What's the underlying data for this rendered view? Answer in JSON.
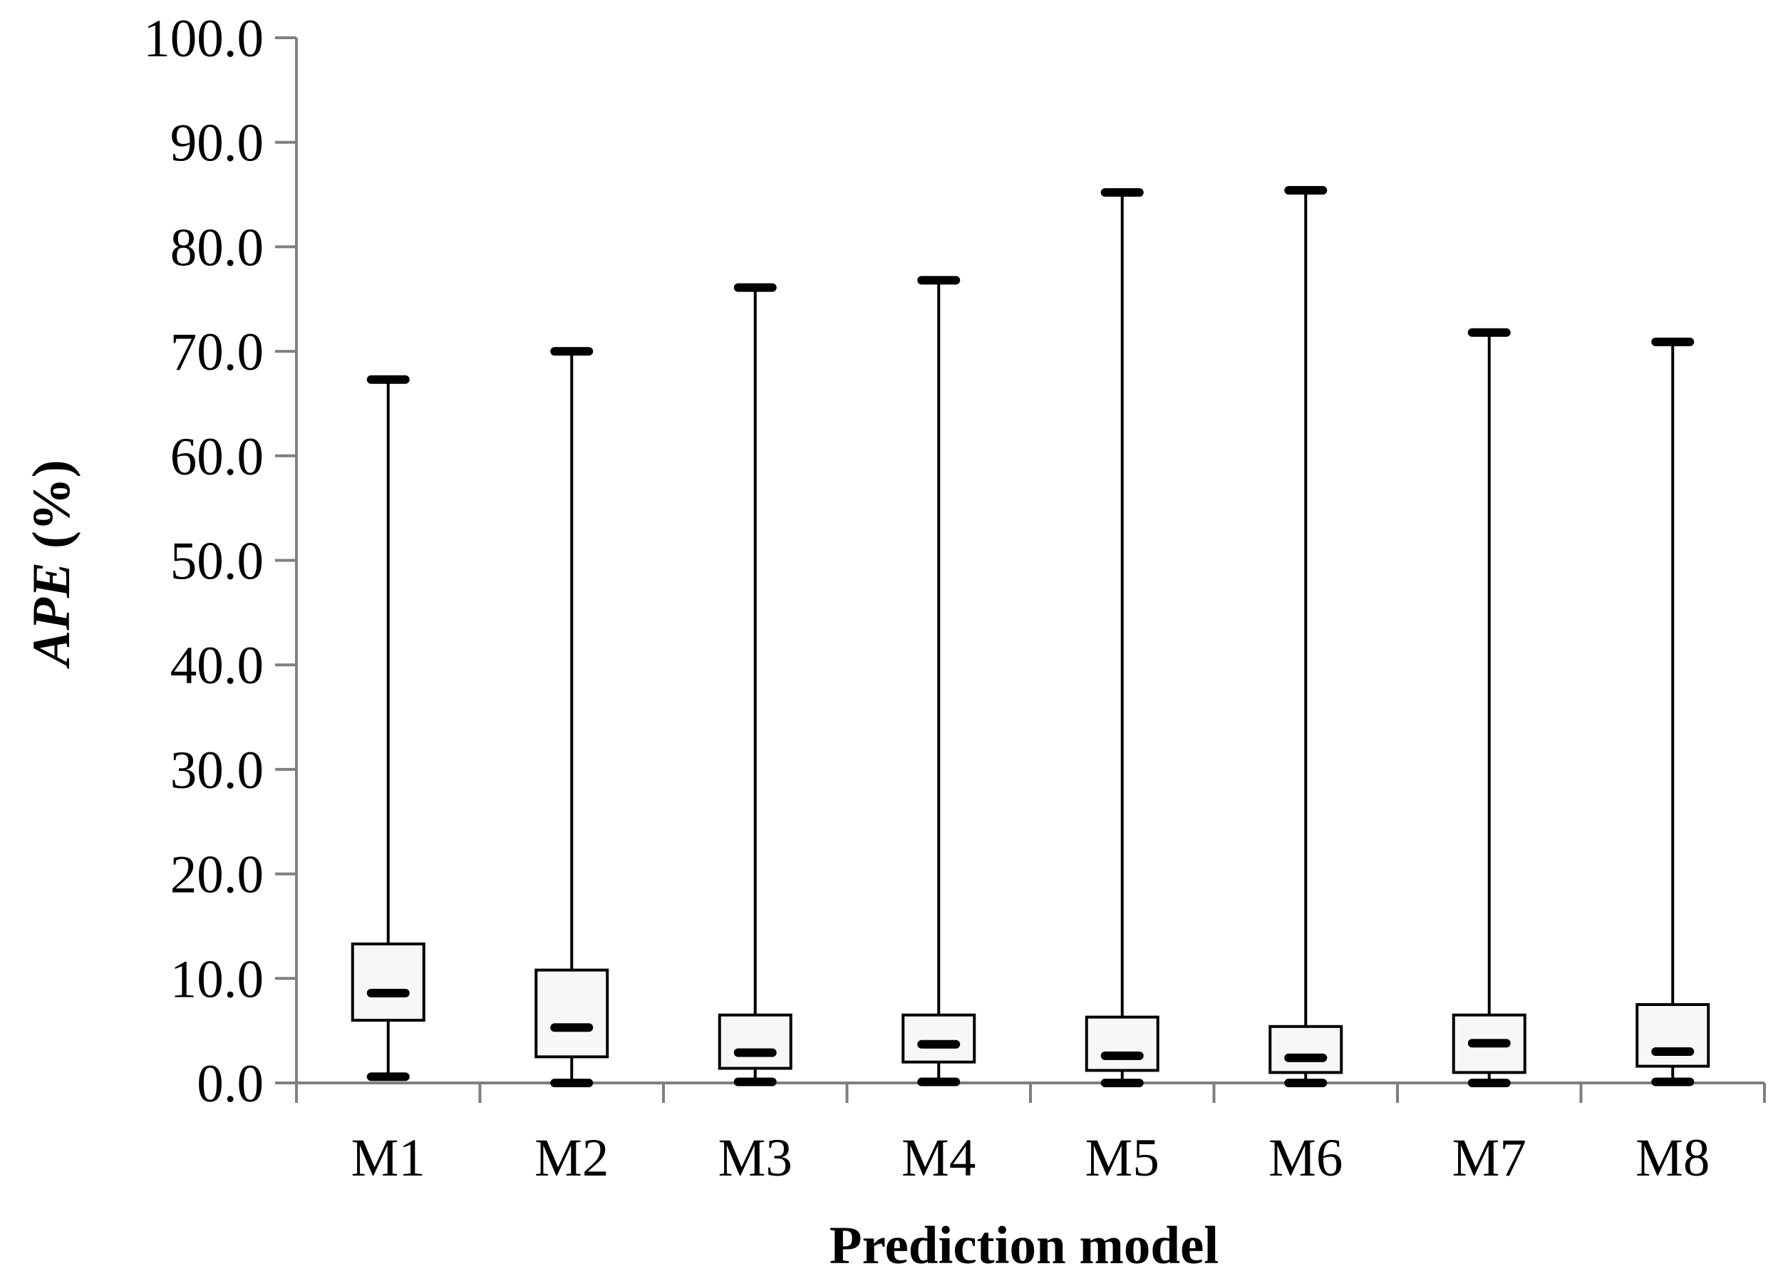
{
  "chart_data": {
    "type": "boxplot",
    "title": "",
    "xlabel": "Prediction model",
    "ylabel_italic": "APE",
    "ylabel_rest": " (%)",
    "ylim": [
      0,
      100
    ],
    "yticks": [
      "0.0",
      "10.0",
      "20.0",
      "30.0",
      "40.0",
      "50.0",
      "60.0",
      "70.0",
      "80.0",
      "90.0",
      "100.0"
    ],
    "categories": [
      "M1",
      "M2",
      "M3",
      "M4",
      "M5",
      "M6",
      "M7",
      "M8"
    ],
    "boxes": [
      {
        "min": 0.6,
        "q1": 6.0,
        "median": 8.6,
        "q3": 13.3,
        "max": 67.3
      },
      {
        "min": 0.0,
        "q1": 2.5,
        "median": 5.3,
        "q3": 10.8,
        "max": 70.0
      },
      {
        "min": 0.1,
        "q1": 1.4,
        "median": 2.9,
        "q3": 6.5,
        "max": 76.1
      },
      {
        "min": 0.1,
        "q1": 2.0,
        "median": 3.7,
        "q3": 6.5,
        "max": 76.8
      },
      {
        "min": 0.0,
        "q1": 1.2,
        "median": 2.6,
        "q3": 6.3,
        "max": 85.2
      },
      {
        "min": 0.0,
        "q1": 1.0,
        "median": 2.4,
        "q3": 5.4,
        "max": 85.4
      },
      {
        "min": 0.0,
        "q1": 1.0,
        "median": 3.8,
        "q3": 6.5,
        "max": 71.8
      },
      {
        "min": 0.1,
        "q1": 1.6,
        "median": 3.0,
        "q3": 7.5,
        "max": 70.9
      }
    ],
    "grid": false,
    "legend": "none",
    "colors": {
      "box_fill": "#f7f7f7",
      "stroke": "#000000",
      "axis": "#7f7f7f"
    }
  }
}
